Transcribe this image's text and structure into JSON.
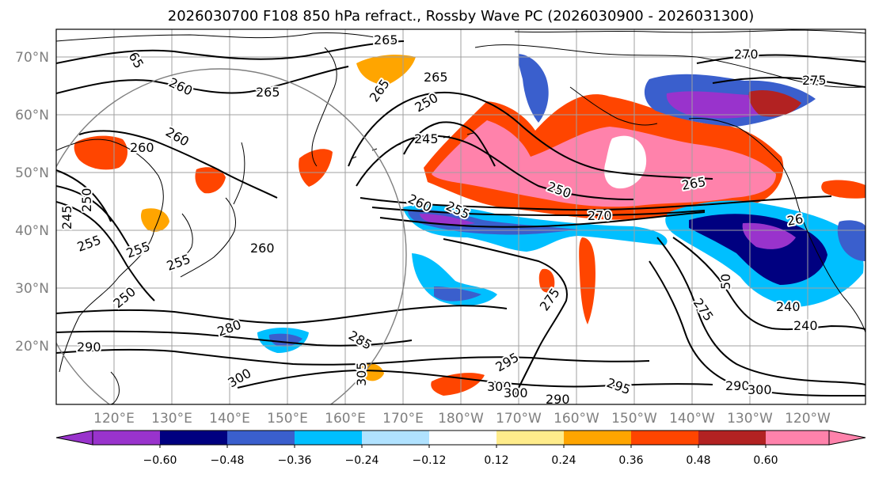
{
  "title": "2026030700 F108 850 hPa refract., Rossby Wave PC (2026030900 - 2026031300)",
  "map": {
    "lat_labels": [
      "70°N",
      "60°N",
      "50°N",
      "40°N",
      "30°N",
      "20°N"
    ],
    "lon_labels": [
      "120°E",
      "130°E",
      "140°E",
      "150°E",
      "160°E",
      "170°E",
      "180°W",
      "170°W",
      "160°W",
      "150°W",
      "140°W",
      "130°W",
      "120°W"
    ],
    "land_color": "#000000",
    "grid_color": "#a0a0a0",
    "circle_color": "#7f7f7f",
    "contour_labels": [
      {
        "text": "265"
      },
      {
        "text": "65"
      },
      {
        "text": "260"
      },
      {
        "text": "265"
      },
      {
        "text": "265"
      },
      {
        "text": "265"
      },
      {
        "text": "250"
      },
      {
        "text": "245"
      },
      {
        "text": "260"
      },
      {
        "text": "260"
      },
      {
        "text": "270"
      },
      {
        "text": "275"
      },
      {
        "text": "260"
      },
      {
        "text": "255"
      },
      {
        "text": "250"
      },
      {
        "text": "270"
      },
      {
        "text": "265"
      },
      {
        "text": "250"
      },
      {
        "text": "245"
      },
      {
        "text": "255"
      },
      {
        "text": "255"
      },
      {
        "text": "260"
      },
      {
        "text": "250"
      },
      {
        "text": "280"
      },
      {
        "text": "285"
      },
      {
        "text": "290"
      },
      {
        "text": "300"
      },
      {
        "text": "305"
      },
      {
        "text": "275"
      },
      {
        "text": "295"
      },
      {
        "text": "300"
      },
      {
        "text": "300"
      },
      {
        "text": "290"
      },
      {
        "text": "295"
      },
      {
        "text": "290"
      },
      {
        "text": "300"
      },
      {
        "text": "240"
      },
      {
        "text": "240"
      },
      {
        "text": "275"
      },
      {
        "text": "50"
      },
      {
        "text": "26"
      },
      {
        "text": "255"
      }
    ]
  },
  "colorbar": {
    "tick_labels": [
      "−0.60",
      "−0.48",
      "−0.36",
      "−0.24",
      "−0.12",
      "0.12",
      "0.24",
      "0.36",
      "0.48",
      "0.60"
    ],
    "colors": [
      "#9933cc",
      "#000080",
      "#3a5fcd",
      "#00bfff",
      "#b0e2ff",
      "#ffffff",
      "#ffec8b",
      "#ffa500",
      "#ff4500",
      "#b22222",
      "#ff82ab",
      "#ff82ab"
    ],
    "under_color": "#9933cc",
    "over_color": "#ff82ab"
  }
}
